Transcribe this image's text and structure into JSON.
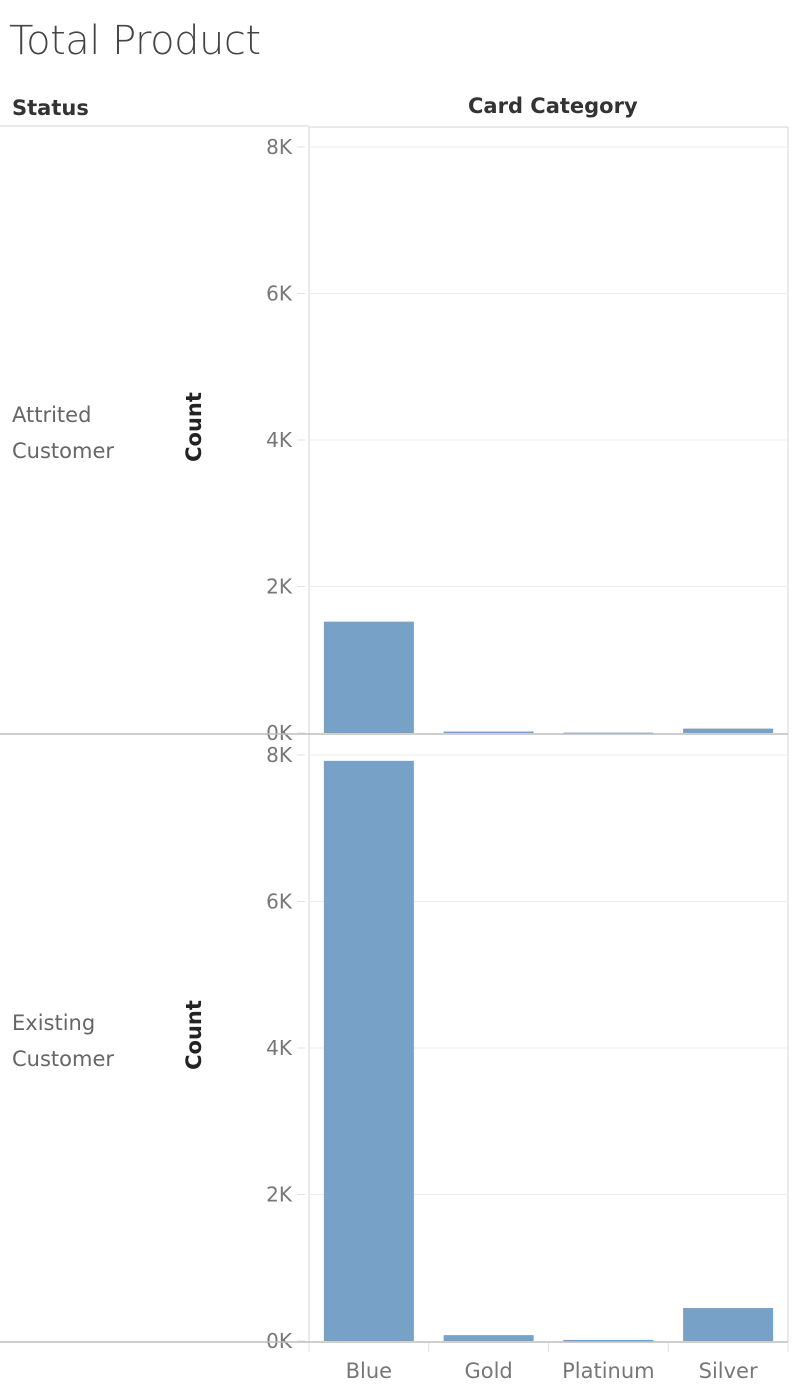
{
  "title": "Total Product",
  "chart_data": {
    "type": "bar",
    "row_field": "Status",
    "column_field": "Card Category",
    "categories": [
      "Blue",
      "Gold",
      "Platinum",
      "Silver"
    ],
    "ylabel": "Count",
    "ylim": [
      0,
      8000
    ],
    "yticks": [
      0,
      2000,
      4000,
      6000,
      8000
    ],
    "ytick_labels": [
      "0K",
      "2K",
      "4K",
      "6K",
      "8K"
    ],
    "grid": true,
    "bar_color": "#77a1c6",
    "panes": [
      {
        "row": [
          "Attrited",
          "Customer"
        ],
        "values": [
          1520,
          20,
          5,
          60
        ]
      },
      {
        "row": [
          "Existing",
          "Customer"
        ],
        "values": [
          7920,
          80,
          15,
          450
        ]
      }
    ]
  }
}
